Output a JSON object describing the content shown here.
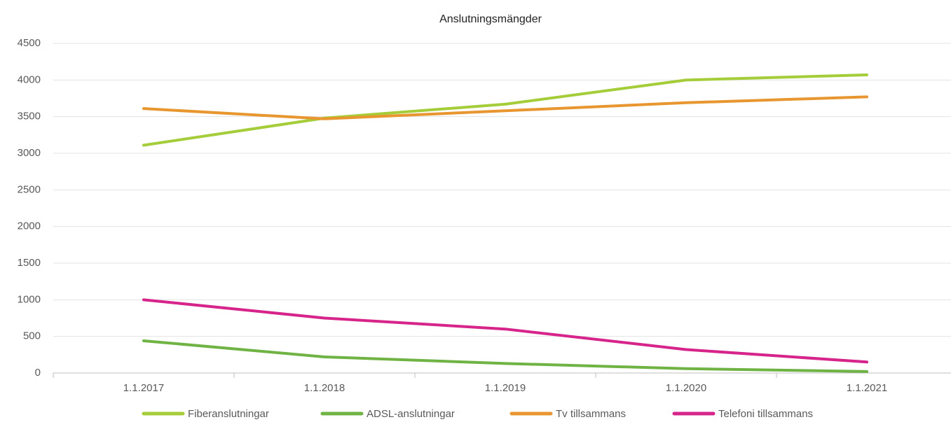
{
  "chart_data": {
    "type": "line",
    "title": "Anslutningsmängder",
    "categories": [
      "1.1.2017",
      "1.1.2018",
      "1.1.2019",
      "1.1.2020",
      "1.1.2021"
    ],
    "series": [
      {
        "name": "Fiberanslutningar",
        "color": "#a5cd39",
        "values": [
          3110,
          3480,
          3670,
          4000,
          4070
        ]
      },
      {
        "name": "ADSL-anslutningar",
        "color": "#70b345",
        "values": [
          440,
          220,
          130,
          60,
          20
        ]
      },
      {
        "name": "Tv tillsammans",
        "color": "#e8962f",
        "values": [
          3610,
          3470,
          3580,
          3690,
          3770
        ]
      },
      {
        "name": "Telefoni tillsammans",
        "color": "#d6248b",
        "values": [
          1000,
          750,
          600,
          320,
          150
        ]
      }
    ],
    "ylim": [
      0,
      4500
    ],
    "yticks": [
      0,
      500,
      1000,
      1500,
      2000,
      2500,
      3000,
      3500,
      4000,
      4500
    ],
    "grid": true,
    "legend": "bottom"
  }
}
